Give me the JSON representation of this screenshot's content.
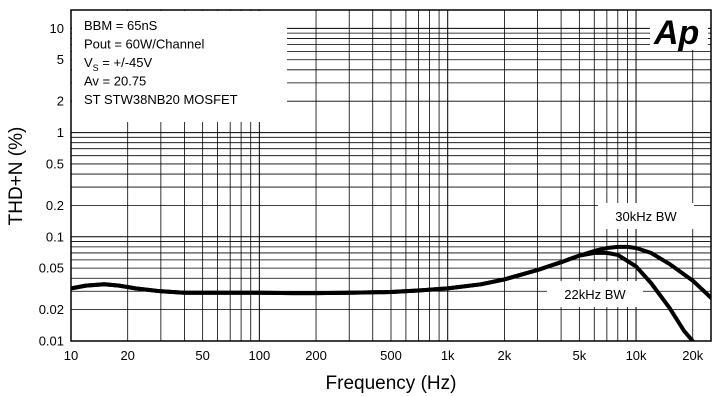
{
  "chart_data": {
    "type": "line",
    "xlabel": "Frequency (Hz)",
    "ylabel": "THD+N (%)",
    "x_scale": "log",
    "y_scale": "log",
    "xlim": [
      10,
      25000
    ],
    "ylim": [
      0.01,
      15
    ],
    "grid": true,
    "x_ticks": [
      {
        "v": 10,
        "label": "10"
      },
      {
        "v": 20,
        "label": "20"
      },
      {
        "v": 50,
        "label": "50"
      },
      {
        "v": 100,
        "label": "100"
      },
      {
        "v": 200,
        "label": "200"
      },
      {
        "v": 500,
        "label": "500"
      },
      {
        "v": 1000,
        "label": "1k"
      },
      {
        "v": 2000,
        "label": "2k"
      },
      {
        "v": 5000,
        "label": "5k"
      },
      {
        "v": 10000,
        "label": "10k"
      },
      {
        "v": 20000,
        "label": "20k"
      }
    ],
    "y_ticks": [
      {
        "v": 10,
        "label": "10"
      },
      {
        "v": 5,
        "label": "5"
      },
      {
        "v": 2,
        "label": "2"
      },
      {
        "v": 1,
        "label": "1"
      },
      {
        "v": 0.5,
        "label": "0.5"
      },
      {
        "v": 0.2,
        "label": "0.2"
      },
      {
        "v": 0.1,
        "label": "0.1"
      },
      {
        "v": 0.05,
        "label": "0.05"
      },
      {
        "v": 0.02,
        "label": "0.02"
      },
      {
        "v": 0.01,
        "label": "0.01"
      }
    ],
    "info_lines": [
      {
        "main": "BBM = 65nS",
        "sub": "",
        "rest": ""
      },
      {
        "main": "Pout = 60W/Channel",
        "sub": "",
        "rest": ""
      },
      {
        "main": "V",
        "sub": "S",
        "rest": " = +/-45V"
      },
      {
        "main": "Av = 20.75",
        "sub": "",
        "rest": ""
      },
      {
        "main": "ST STW38NB20 MOSFET",
        "sub": "",
        "rest": ""
      }
    ],
    "logo": "Ap",
    "series": [
      {
        "name": "30kHz BW",
        "x": [
          10,
          12,
          15,
          18,
          22,
          30,
          40,
          60,
          100,
          150,
          200,
          300,
          500,
          700,
          1000,
          1500,
          2000,
          3000,
          4000,
          5000,
          6000,
          7000,
          8000,
          9000,
          10000,
          12000,
          15000,
          20000,
          25000
        ],
        "y": [
          0.032,
          0.034,
          0.035,
          0.034,
          0.032,
          0.03,
          0.029,
          0.029,
          0.029,
          0.0288,
          0.0288,
          0.029,
          0.0295,
          0.0305,
          0.032,
          0.035,
          0.039,
          0.048,
          0.057,
          0.066,
          0.073,
          0.078,
          0.08,
          0.08,
          0.078,
          0.07,
          0.055,
          0.038,
          0.026
        ]
      },
      {
        "name": "22kHz BW",
        "x": [
          10,
          12,
          15,
          18,
          22,
          30,
          40,
          60,
          100,
          150,
          200,
          300,
          500,
          700,
          1000,
          1500,
          2000,
          3000,
          4000,
          5000,
          6000,
          7000,
          8000,
          10000,
          12000,
          15000,
          18000,
          20000
        ],
        "y": [
          0.032,
          0.034,
          0.035,
          0.034,
          0.032,
          0.03,
          0.029,
          0.029,
          0.029,
          0.0288,
          0.0288,
          0.029,
          0.0295,
          0.0305,
          0.032,
          0.035,
          0.039,
          0.048,
          0.057,
          0.066,
          0.07,
          0.07,
          0.067,
          0.052,
          0.036,
          0.021,
          0.0125,
          0.01
        ]
      }
    ]
  }
}
